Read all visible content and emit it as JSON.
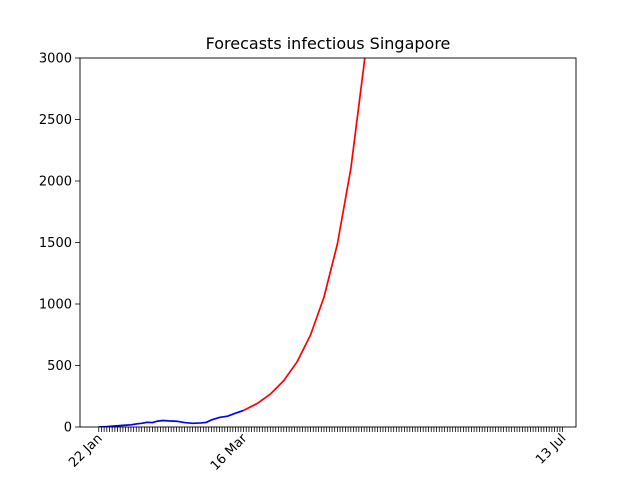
{
  "chart_data": {
    "type": "line",
    "title": "Forecasts infectious Singapore",
    "xlabel": "",
    "ylabel": "",
    "x_axis": {
      "type": "date",
      "range": [
        "2020-01-15",
        "2020-07-18"
      ],
      "labeled_ticks": [
        {
          "date": "2020-01-22",
          "label": "22 Jan"
        },
        {
          "date": "2020-03-16",
          "label": "16 Mar"
        },
        {
          "date": "2020-07-13",
          "label": "13 Jul"
        }
      ],
      "minor_ticks": "daily",
      "tick_label_rotation": 45
    },
    "y_axis": {
      "range": [
        0,
        3000
      ],
      "ticks": [
        0,
        500,
        1000,
        1500,
        2000,
        2500,
        3000
      ]
    },
    "grid": false,
    "legend": "none",
    "series": [
      {
        "role": "observed",
        "color": "#0000ff",
        "points": [
          {
            "x": "2020-01-22",
            "y": 0
          },
          {
            "x": "2020-01-25",
            "y": 3
          },
          {
            "x": "2020-01-28",
            "y": 8
          },
          {
            "x": "2020-01-31",
            "y": 13
          },
          {
            "x": "2020-02-03",
            "y": 18
          },
          {
            "x": "2020-02-05",
            "y": 25
          },
          {
            "x": "2020-02-07",
            "y": 30
          },
          {
            "x": "2020-02-09",
            "y": 38
          },
          {
            "x": "2020-02-11",
            "y": 36
          },
          {
            "x": "2020-02-13",
            "y": 48
          },
          {
            "x": "2020-02-15",
            "y": 53
          },
          {
            "x": "2020-02-17",
            "y": 50
          },
          {
            "x": "2020-02-20",
            "y": 47
          },
          {
            "x": "2020-02-23",
            "y": 36
          },
          {
            "x": "2020-02-26",
            "y": 30
          },
          {
            "x": "2020-02-29",
            "y": 33
          },
          {
            "x": "2020-03-02",
            "y": 37
          },
          {
            "x": "2020-03-04",
            "y": 57
          },
          {
            "x": "2020-03-07",
            "y": 78
          },
          {
            "x": "2020-03-10",
            "y": 88
          },
          {
            "x": "2020-03-13",
            "y": 112
          },
          {
            "x": "2020-03-16",
            "y": 135
          }
        ]
      },
      {
        "role": "forecast",
        "color": "#ff0000",
        "points": [
          {
            "x": "2020-03-16",
            "y": 135
          },
          {
            "x": "2020-03-21",
            "y": 190
          },
          {
            "x": "2020-03-26",
            "y": 268
          },
          {
            "x": "2020-03-31",
            "y": 377
          },
          {
            "x": "2020-04-05",
            "y": 531
          },
          {
            "x": "2020-04-10",
            "y": 749
          },
          {
            "x": "2020-04-15",
            "y": 1056
          },
          {
            "x": "2020-04-20",
            "y": 1488
          },
          {
            "x": "2020-04-25",
            "y": 2098
          },
          {
            "x": "2020-04-30",
            "y": 2957
          },
          {
            "x": "2020-05-01",
            "y": 3160
          }
        ]
      }
    ]
  }
}
